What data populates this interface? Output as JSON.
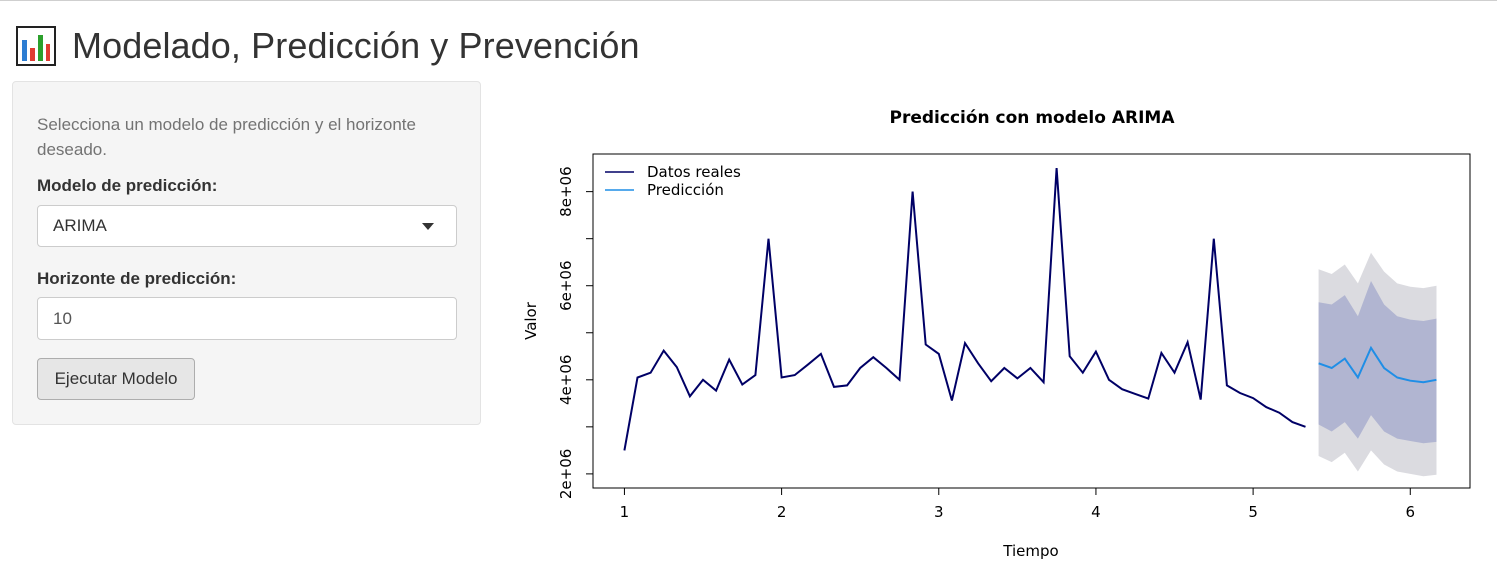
{
  "app": {
    "title": "Modelado, Predicción y Prevención",
    "icon": "bar-chart-icon"
  },
  "sidebar": {
    "help_text": "Selecciona un modelo de predicción y el horizonte deseado.",
    "model_label": "Modelo de predicción:",
    "model_value": "ARIMA",
    "horizon_label": "Horizonte de predicción:",
    "horizon_value": "10",
    "run_button": "Ejecutar Modelo"
  },
  "colors": {
    "actual_line": "#000066",
    "forecast_line": "#1f8ee6",
    "band_80": "#b1b5d1",
    "band_95": "#dbdbe0"
  },
  "chart_data": {
    "type": "line",
    "title": "Predicción con modelo ARIMA",
    "xlabel": "Tiempo",
    "ylabel": "Valor",
    "xlim": [
      0.8,
      6.38
    ],
    "ylim": [
      1700000,
      8800000
    ],
    "xticks": [
      1,
      2,
      3,
      4,
      5,
      6
    ],
    "xtick_labels": [
      "1",
      "2",
      "3",
      "4",
      "5",
      "6"
    ],
    "yticks": [
      2000000,
      4000000,
      6000000,
      8000000
    ],
    "ytick_labels": [
      "2e+06",
      "4e+06",
      "6e+06",
      "8e+06"
    ],
    "yminor_ticks": [
      3000000,
      5000000,
      7000000
    ],
    "legend": {
      "position": "top-left",
      "entries": [
        "Datos reales",
        "Predicción"
      ]
    },
    "series": [
      {
        "name": "Datos reales",
        "x": [
          1,
          1.0833,
          1.1667,
          1.25,
          1.3333,
          1.4167,
          1.5,
          1.5833,
          1.6667,
          1.75,
          1.8333,
          1.9167,
          2,
          2.0833,
          2.1667,
          2.25,
          2.3333,
          2.4167,
          2.5,
          2.5833,
          2.6667,
          2.75,
          2.8333,
          2.9167,
          3,
          3.0833,
          3.1667,
          3.25,
          3.3333,
          3.4167,
          3.5,
          3.5833,
          3.6667,
          3.75,
          3.8333,
          3.9167,
          4,
          4.0833,
          4.1667,
          4.25,
          4.3333,
          4.4167,
          4.5,
          4.5833,
          4.6667,
          4.75,
          4.8333,
          4.9167,
          5,
          5.0833,
          5.1667,
          5.25,
          5.3333
        ],
        "values": [
          2500000,
          4050000,
          4150000,
          4620000,
          4270000,
          3650000,
          4000000,
          3770000,
          4430000,
          3900000,
          4100000,
          7000000,
          4050000,
          4100000,
          4320000,
          4550000,
          3850000,
          3880000,
          4250000,
          4480000,
          4250000,
          4000000,
          8000000,
          4750000,
          4550000,
          3560000,
          4780000,
          4350000,
          3970000,
          4250000,
          4030000,
          4250000,
          3950000,
          8500000,
          4500000,
          4150000,
          4600000,
          4000000,
          3800000,
          3700000,
          3600000,
          4570000,
          4150000,
          4800000,
          3580000,
          7000000,
          3880000,
          3720000,
          3610000,
          3420000,
          3300000,
          3100000,
          3000000
        ]
      },
      {
        "name": "Predicción",
        "x": [
          5.4167,
          5.5,
          5.5833,
          5.6667,
          5.75,
          5.8333,
          5.9167,
          6,
          6.0833,
          6.1667
        ],
        "values": [
          4350000,
          4250000,
          4450000,
          4050000,
          4680000,
          4250000,
          4050000,
          3980000,
          3950000,
          4000000
        ],
        "lo80": [
          3050000,
          2900000,
          3100000,
          2750000,
          3250000,
          2900000,
          2750000,
          2700000,
          2650000,
          2680000
        ],
        "hi80": [
          5650000,
          5600000,
          5800000,
          5350000,
          6100000,
          5600000,
          5350000,
          5280000,
          5250000,
          5300000
        ],
        "lo95": [
          2380000,
          2250000,
          2450000,
          2050000,
          2500000,
          2200000,
          2050000,
          2000000,
          1950000,
          1980000
        ],
        "hi95": [
          6350000,
          6250000,
          6450000,
          6050000,
          6700000,
          6300000,
          6050000,
          5980000,
          5950000,
          6000000
        ]
      }
    ]
  }
}
